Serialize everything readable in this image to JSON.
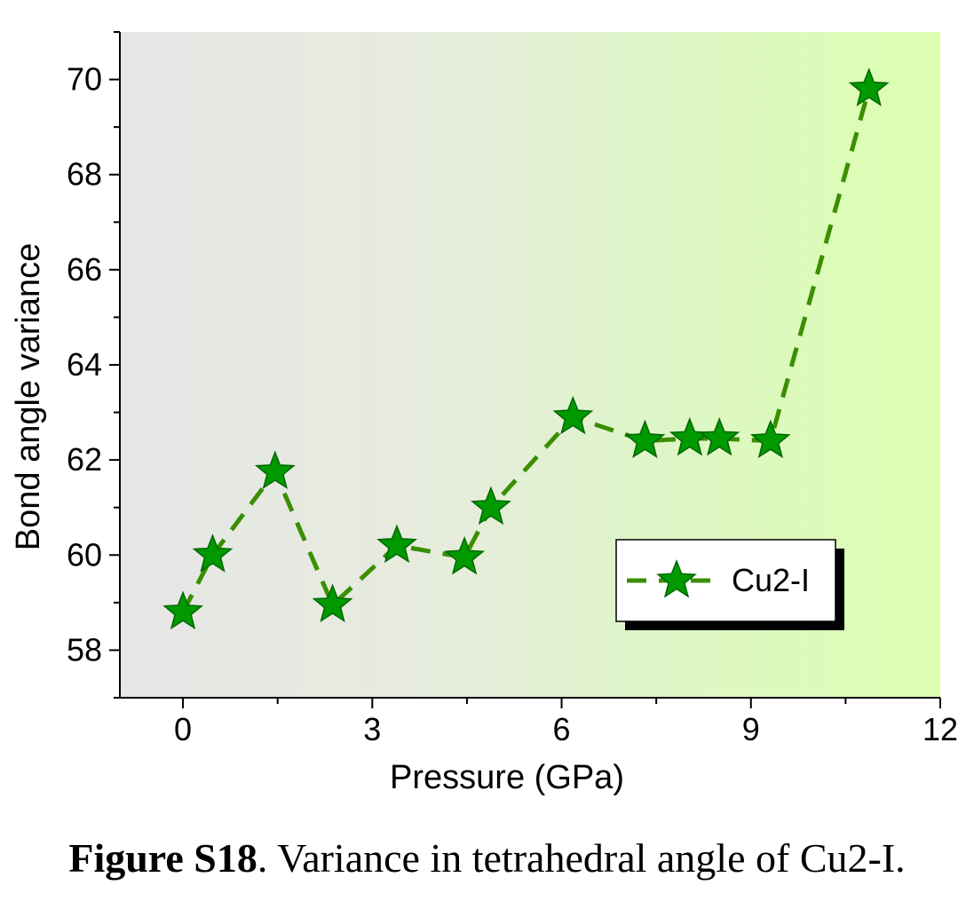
{
  "chart_data": {
    "type": "line",
    "title": "",
    "xlabel": "Pressure (GPa)",
    "ylabel": "Bond angle variance",
    "xlim": [
      -1,
      12
    ],
    "ylim": [
      57,
      71
    ],
    "x_ticks": [
      0,
      3,
      6,
      9,
      12
    ],
    "y_ticks": [
      58,
      60,
      62,
      64,
      66,
      68,
      70
    ],
    "grid": false,
    "legend_position": "lower-right",
    "series": [
      {
        "name": "Cu2-I",
        "color": "#009900",
        "line_color": "#3a8f00",
        "line_style": "dashed",
        "marker": "star",
        "x": [
          0,
          0.47,
          1.46,
          2.37,
          3.39,
          4.46,
          4.88,
          6.18,
          7.32,
          8.03,
          8.5,
          9.31,
          10.87
        ],
        "y": [
          58.8,
          60.0,
          61.75,
          58.95,
          60.2,
          59.95,
          61.0,
          62.9,
          62.4,
          62.45,
          62.45,
          62.4,
          69.8
        ]
      }
    ]
  },
  "caption": {
    "label": "Figure S18",
    "text": ". Variance in tetrahedral angle of Cu2-I."
  }
}
